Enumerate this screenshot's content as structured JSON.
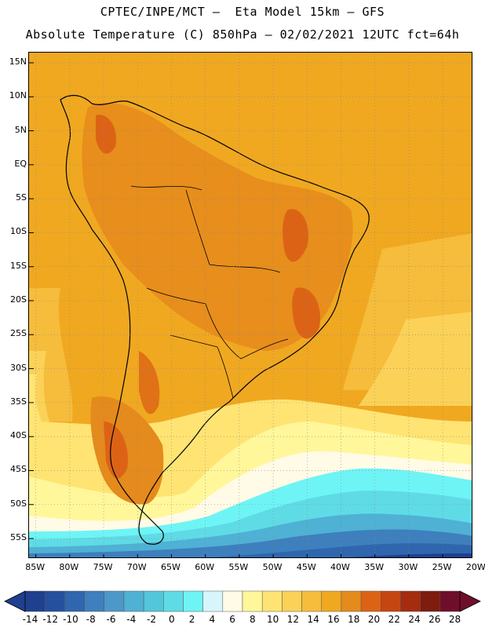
{
  "title": {
    "line1": "CPTEC/INPE/MCT –  Eta Model 15km – GFS",
    "line2": "Absolute Temperature (C) 850hPa – 02/02/2021 12UTC fct=64h"
  },
  "map": {
    "lat_labels": [
      "15N",
      "10N",
      "5N",
      "EQ",
      "5S",
      "10S",
      "15S",
      "20S",
      "25S",
      "30S",
      "35S",
      "40S",
      "45S",
      "50S",
      "55S"
    ],
    "lon_labels": [
      "85W",
      "80W",
      "75W",
      "70W",
      "65W",
      "60W",
      "55W",
      "50W",
      "45W",
      "40W",
      "35W",
      "30W",
      "25W",
      "20W"
    ],
    "lat_values": [
      15,
      10,
      5,
      0,
      -5,
      -10,
      -15,
      -20,
      -25,
      -30,
      -35,
      -40,
      -45,
      -50,
      -55
    ],
    "lon_values": [
      -85,
      -80,
      -75,
      -70,
      -65,
      -60,
      -55,
      -50,
      -45,
      -40,
      -35,
      -30,
      -25,
      -20
    ],
    "lat_range": [
      -58,
      16.5
    ],
    "lon_range": [
      -86,
      -20.5
    ],
    "grid": true
  },
  "colorbar": {
    "labels": [
      "-14",
      "-12",
      "-10",
      "-8",
      "-6",
      "-4",
      "-2",
      "0",
      "2",
      "4",
      "6",
      "8",
      "10",
      "12",
      "14",
      "16",
      "18",
      "20",
      "22",
      "24",
      "26",
      "28"
    ],
    "colors": [
      "#1f3f8f",
      "#24509e",
      "#2f66ad",
      "#3e7fbd",
      "#4b98c9",
      "#4fb1d4",
      "#52c6db",
      "#5fdbe6",
      "#6ff4f5",
      "#d6f6fb",
      "#fffbe6",
      "#fff79a",
      "#ffe473",
      "#fbd257",
      "#f6bc3b",
      "#f0a820",
      "#e58a1c",
      "#dc6315",
      "#c64611",
      "#a62c0f",
      "#7e1c0e",
      "#6e0e2a"
    ]
  },
  "icons": {
    "colorbar_left": "triangle-left-icon",
    "colorbar_right": "triangle-right-icon"
  }
}
